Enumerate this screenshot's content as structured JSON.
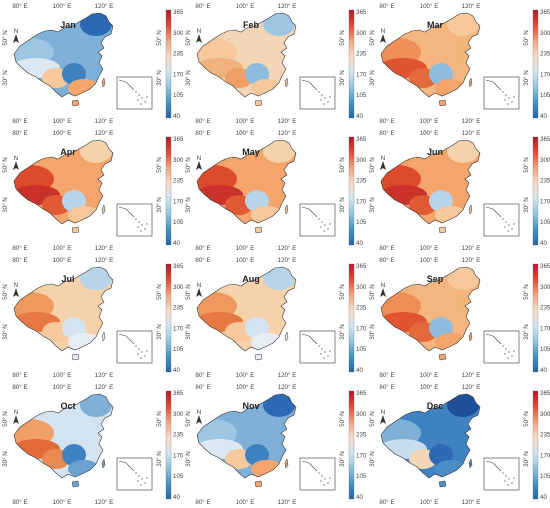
{
  "layout": {
    "columns": 3,
    "rows": 4
  },
  "axes": {
    "lon_labels": [
      "80° E",
      "100° E",
      "120° E"
    ],
    "lat_labels": [
      "50° N",
      "30° N"
    ]
  },
  "north_arrow": "N",
  "colorbar": {
    "ticks": [
      "365",
      "300",
      "235",
      "170",
      "105",
      "40"
    ],
    "colors": [
      "#b2182b",
      "#e34a33",
      "#f4a582",
      "#fddbc7",
      "#d1e5f0",
      "#92c5de",
      "#4393c3",
      "#2166ac"
    ]
  },
  "panels": [
    {
      "month": "Jan",
      "tone": "cold"
    },
    {
      "month": "Feb",
      "tone": "cool"
    },
    {
      "month": "Mar",
      "tone": "warm"
    },
    {
      "month": "Apr",
      "tone": "hot"
    },
    {
      "month": "May",
      "tone": "hot"
    },
    {
      "month": "Jun",
      "tone": "hot"
    },
    {
      "month": "Jul",
      "tone": "mild"
    },
    {
      "month": "Aug",
      "tone": "mild"
    },
    {
      "month": "Sep",
      "tone": "warm"
    },
    {
      "month": "Oct",
      "tone": "mixed"
    },
    {
      "month": "Nov",
      "tone": "cold"
    },
    {
      "month": "Dec",
      "tone": "coldest"
    }
  ]
}
